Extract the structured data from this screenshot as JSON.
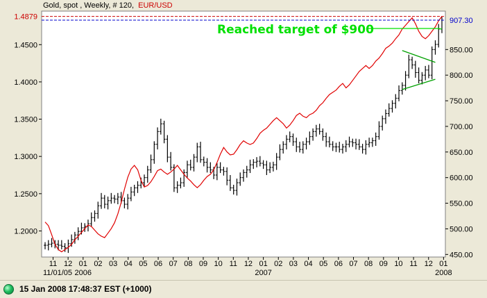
{
  "header": {
    "title": "Gold, spot , Weekly, # 120,",
    "series2": "EUR/USD"
  },
  "status": {
    "indicator_color": "#20c060",
    "text": "15 Jan 2008 17:48:37  EST (+1000)"
  },
  "colors": {
    "gold_bars": "#000000",
    "eurusd_line": "#e00000",
    "current_eur": "#cc0000",
    "current_gold": "#0000cc",
    "annotation": "#00e000",
    "trendlines": "#00a000",
    "plot_bg": "#ffffff",
    "frame_bg": "#ece9d8"
  },
  "chart_data": {
    "type": "line",
    "title": "Gold, spot , Weekly, # 120, EUR/USD",
    "left_axis": {
      "series": "EUR/USD",
      "range": [
        1.165,
        1.495
      ],
      "ticks": [
        1.2,
        1.25,
        1.3,
        1.35,
        1.4,
        1.45
      ],
      "tick_labels": [
        "1.2000",
        "1.2500",
        "1.3000",
        "1.3500",
        "1.4000",
        "1.4500"
      ],
      "current_label": "1.4879"
    },
    "right_axis": {
      "series": "Gold, spot",
      "range": [
        445,
        925
      ],
      "ticks": [
        450,
        500,
        550,
        600,
        650,
        700,
        750,
        800,
        850
      ],
      "tick_labels": [
        "450.00",
        "500.00",
        "550.00",
        "600.00",
        "650.00",
        "700.00",
        "750.00",
        "800.00",
        "850.00"
      ],
      "current_label": "907.30"
    },
    "x_axis": {
      "month_labels": [
        "11",
        "12",
        "01",
        "02",
        "03",
        "04",
        "05",
        "06",
        "07",
        "08",
        "09",
        "10",
        "11",
        "12",
        "01",
        "02",
        "03",
        "04",
        "05",
        "06",
        "07",
        "08",
        "09",
        "10",
        "11",
        "12",
        "01"
      ],
      "year_labels": [
        {
          "label": "11/01/05",
          "month_index": 0
        },
        {
          "label": "2006",
          "month_index": 2
        },
        {
          "label": "2007",
          "month_index": 14
        },
        {
          "label": "2008",
          "month_index": 26
        }
      ]
    },
    "series": [
      {
        "name": "Gold, spot",
        "type": "ohlc-weekly",
        "axis": "right",
        "values": [
          468,
          470,
          472,
          470,
          468,
          466,
          463,
          471,
          479,
          488,
          495,
          502,
          505,
          510,
          522,
          530,
          545,
          560,
          548,
          555,
          560,
          558,
          562,
          555,
          548,
          560,
          572,
          580,
          585,
          590,
          600,
          615,
          635,
          665,
          690,
          705,
          675,
          640,
          620,
          580,
          585,
          590,
          610,
          625,
          620,
          640,
          660,
          635,
          630,
          620,
          615,
          605,
          620,
          615,
          612,
          595,
          580,
          575,
          590,
          600,
          610,
          615,
          625,
          630,
          632,
          628,
          625,
          615,
          620,
          625,
          640,
          655,
          665,
          675,
          680,
          670,
          660,
          655,
          665,
          670,
          680,
          690,
          695,
          690,
          680,
          670,
          665,
          660,
          660,
          655,
          660,
          665,
          670,
          668,
          665,
          660,
          655,
          665,
          668,
          672,
          680,
          700,
          715,
          725,
          735,
          745,
          755,
          770,
          780,
          800,
          830,
          820,
          805,
          790,
          800,
          810,
          800,
          850,
          860,
          890,
          907.3
        ]
      },
      {
        "name": "EUR/USD",
        "type": "line",
        "axis": "left",
        "values": [
          1.212,
          1.207,
          1.195,
          1.182,
          1.175,
          1.172,
          1.175,
          1.178,
          1.182,
          1.188,
          1.193,
          1.198,
          1.203,
          1.208,
          1.206,
          1.201,
          1.196,
          1.193,
          1.191,
          1.197,
          1.203,
          1.211,
          1.223,
          1.238,
          1.256,
          1.272,
          1.283,
          1.288,
          1.282,
          1.268,
          1.259,
          1.261,
          1.266,
          1.273,
          1.281,
          1.283,
          1.279,
          1.276,
          1.279,
          1.283,
          1.288,
          1.282,
          1.276,
          1.271,
          1.267,
          1.262,
          1.258,
          1.262,
          1.268,
          1.273,
          1.276,
          1.282,
          1.292,
          1.303,
          1.312,
          1.306,
          1.302,
          1.303,
          1.309,
          1.316,
          1.321,
          1.318,
          1.316,
          1.318,
          1.324,
          1.331,
          1.335,
          1.338,
          1.343,
          1.348,
          1.352,
          1.348,
          1.344,
          1.338,
          1.342,
          1.348,
          1.355,
          1.358,
          1.354,
          1.352,
          1.356,
          1.358,
          1.362,
          1.368,
          1.372,
          1.378,
          1.383,
          1.386,
          1.389,
          1.394,
          1.398,
          1.392,
          1.396,
          1.402,
          1.408,
          1.414,
          1.418,
          1.422,
          1.418,
          1.422,
          1.428,
          1.432,
          1.438,
          1.445,
          1.448,
          1.452,
          1.458,
          1.463,
          1.471,
          1.476,
          1.481,
          1.486,
          1.478,
          1.468,
          1.461,
          1.458,
          1.462,
          1.468,
          1.474,
          1.482,
          1.4879
        ]
      }
    ],
    "annotations": [
      {
        "text": "Reached target of $900"
      }
    ]
  }
}
